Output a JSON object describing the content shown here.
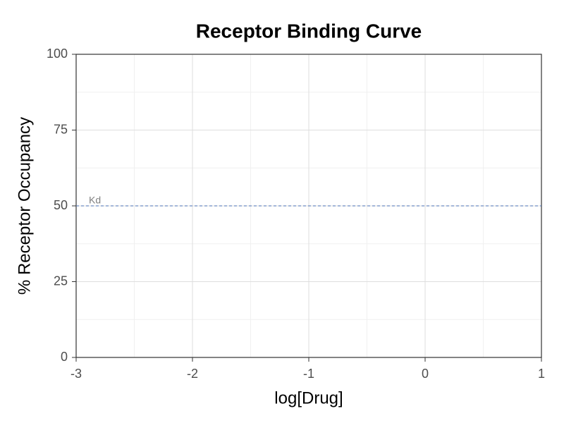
{
  "chart_data": {
    "type": "line",
    "title": "Receptor Binding Curve",
    "xlabel": "log[Drug]",
    "ylabel": "% Receptor Occupancy",
    "series": [],
    "xlim": [
      -3,
      1
    ],
    "xticks": [
      -3,
      -2,
      -1,
      0,
      1
    ],
    "ylim": [
      0,
      100
    ],
    "yticks": [
      0,
      25,
      50,
      75,
      100
    ],
    "grid": true,
    "hline": {
      "value": 50,
      "label": "Kd",
      "color": "#4a6fb5"
    }
  }
}
